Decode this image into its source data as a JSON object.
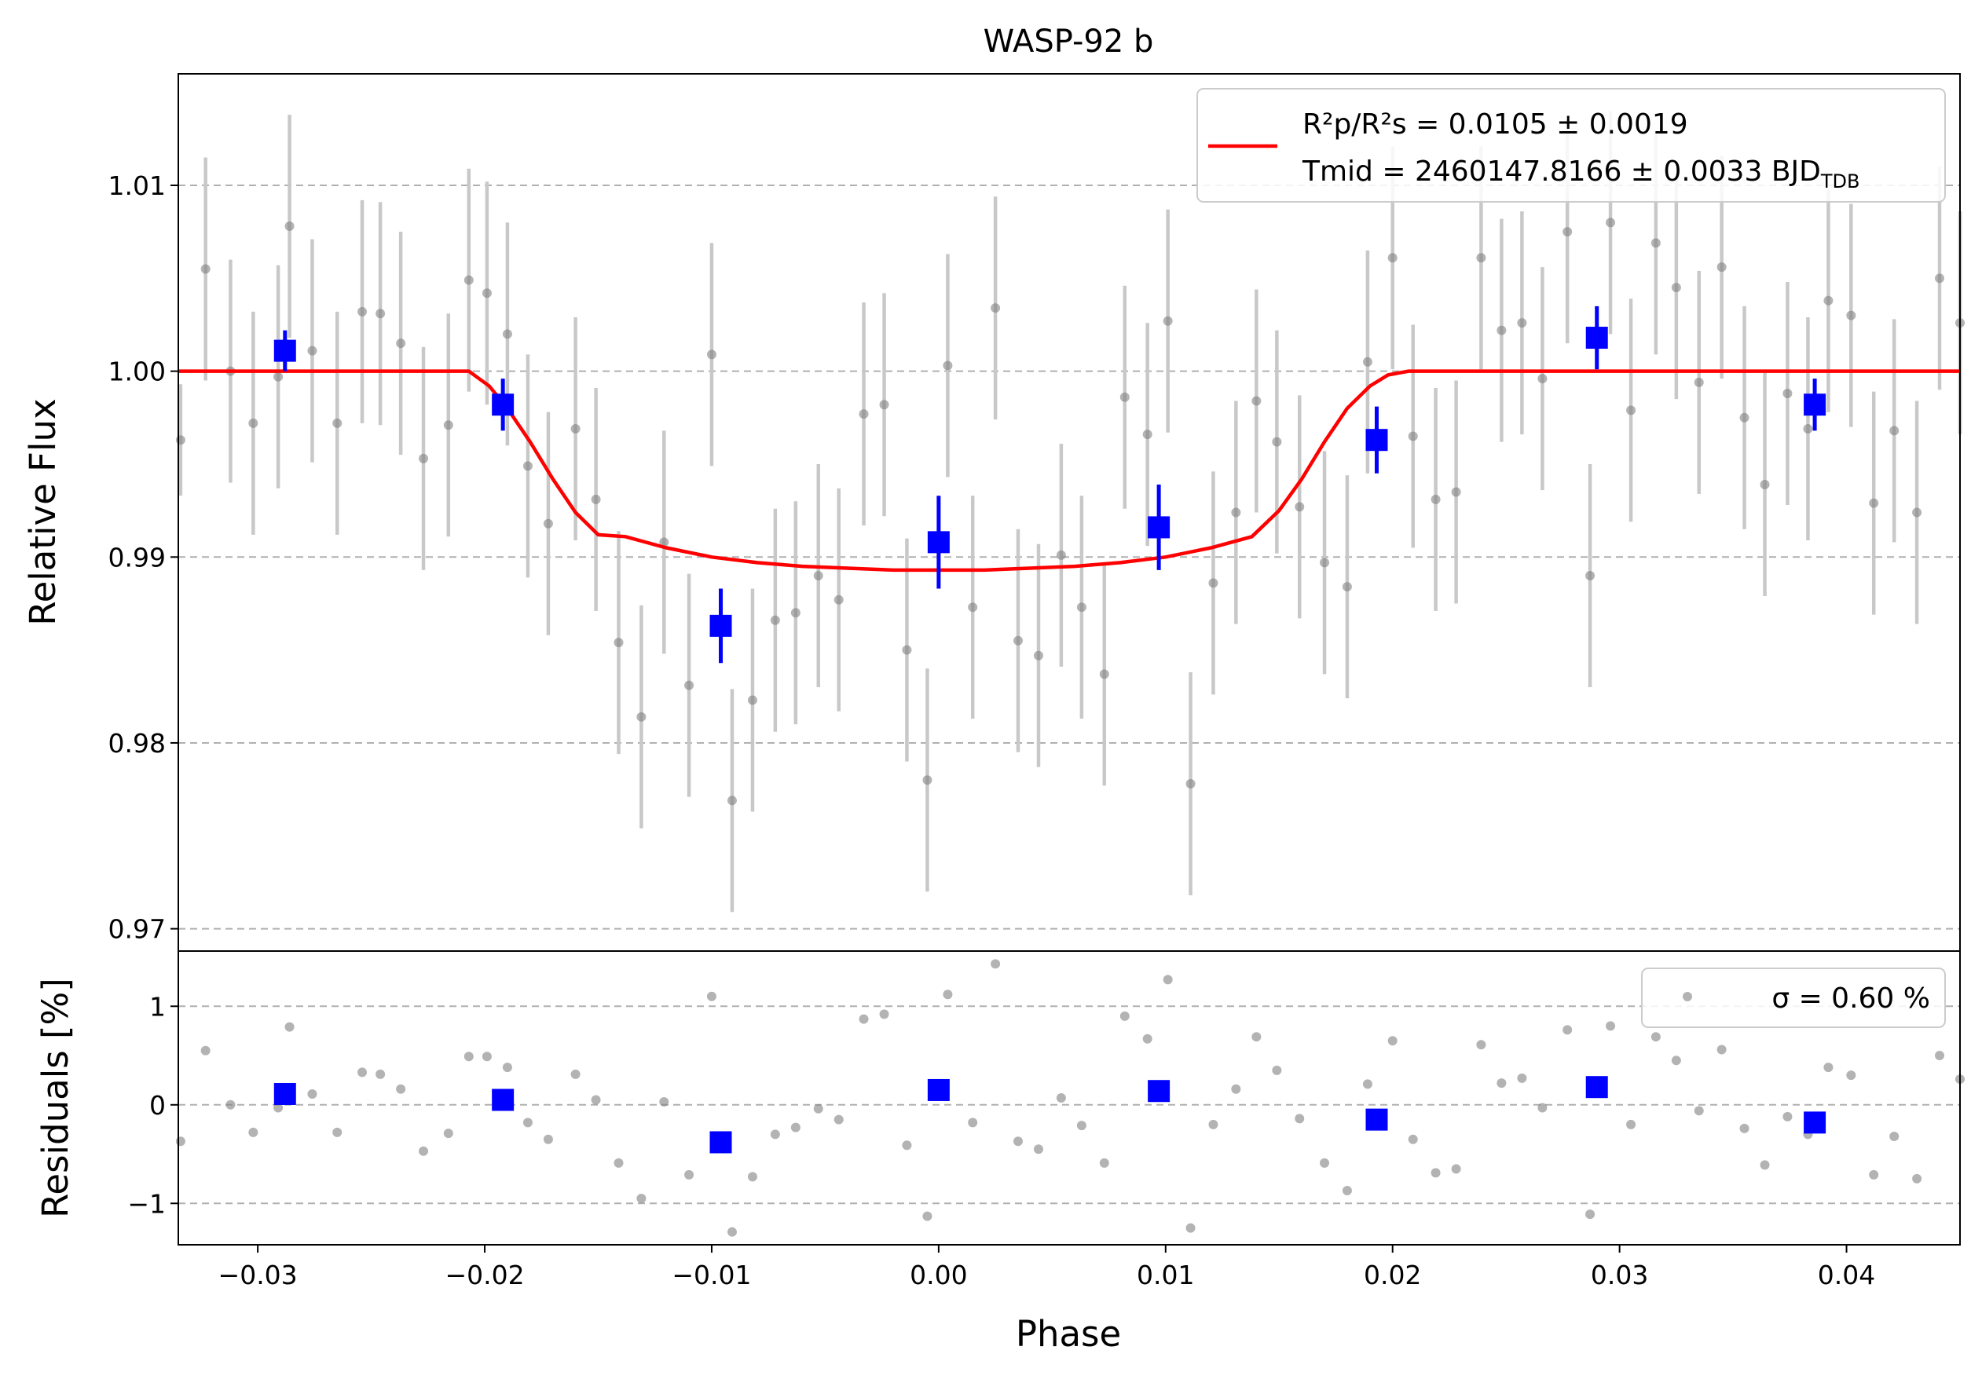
{
  "chart_data": {
    "type": "scatter",
    "title": "WASP-92 b",
    "xlabel": "Phase",
    "xlim": [
      -0.0335,
      0.045
    ],
    "xticks": [
      -0.03,
      -0.02,
      -0.01,
      0.0,
      0.01,
      0.02,
      0.03,
      0.04
    ],
    "xtick_labels": [
      "−0.03",
      "−0.02",
      "−0.01",
      "0.00",
      "0.01",
      "0.02",
      "0.03",
      "0.04"
    ],
    "grid": "horizontal dashed",
    "colors": {
      "raw": "#808080",
      "raw_err": "#c8c8c8",
      "binned": "#0000ff",
      "model": "#ff0000"
    },
    "top": {
      "ylabel": "Relative Flux",
      "ylim": [
        0.9688,
        1.016
      ],
      "yticks": [
        0.97,
        0.98,
        0.99,
        1.0,
        1.01
      ],
      "ytick_labels": [
        "0.97",
        "0.98",
        "0.99",
        "1.00",
        "1.01"
      ],
      "legend_position": "top-right",
      "legend_line1_main": "R²p/R²s = 0.0105 ± 0.0019",
      "legend_line2_main": "Tmid = 2460147.8166 ± 0.0033 BJD",
      "legend_line2_sub": "TDB",
      "raw_points": [
        [
          -0.0334,
          0.9963,
          0.003
        ],
        [
          -0.0323,
          1.0055,
          0.006
        ],
        [
          -0.0312,
          1.0,
          0.006
        ],
        [
          -0.0302,
          0.9972,
          0.006
        ],
        [
          -0.0291,
          0.9997,
          0.006
        ],
        [
          -0.0286,
          1.0078,
          0.006
        ],
        [
          -0.0276,
          1.0011,
          0.006
        ],
        [
          -0.0265,
          0.9972,
          0.006
        ],
        [
          -0.0254,
          1.0032,
          0.006
        ],
        [
          -0.0246,
          1.0031,
          0.006
        ],
        [
          -0.0237,
          1.0015,
          0.006
        ],
        [
          -0.0227,
          0.9953,
          0.006
        ],
        [
          -0.0216,
          0.9971,
          0.006
        ],
        [
          -0.0207,
          1.0049,
          0.006
        ],
        [
          -0.0199,
          1.0042,
          0.006
        ],
        [
          -0.019,
          1.002,
          0.006
        ],
        [
          -0.0181,
          0.9949,
          0.006
        ],
        [
          -0.0172,
          0.9918,
          0.006
        ],
        [
          -0.016,
          0.9969,
          0.006
        ],
        [
          -0.0151,
          0.9931,
          0.006
        ],
        [
          -0.0141,
          0.9854,
          0.006
        ],
        [
          -0.0131,
          0.9814,
          0.006
        ],
        [
          -0.0121,
          0.9908,
          0.006
        ],
        [
          -0.011,
          0.9831,
          0.006
        ],
        [
          -0.01,
          1.0009,
          0.006
        ],
        [
          -0.0091,
          0.9769,
          0.006
        ],
        [
          -0.0082,
          0.9823,
          0.006
        ],
        [
          -0.0072,
          0.9866,
          0.006
        ],
        [
          -0.0063,
          0.987,
          0.006
        ],
        [
          -0.0053,
          0.989,
          0.006
        ],
        [
          -0.0044,
          0.9877,
          0.006
        ],
        [
          -0.0033,
          0.9977,
          0.006
        ],
        [
          -0.0024,
          0.9982,
          0.006
        ],
        [
          -0.0014,
          0.985,
          0.006
        ],
        [
          -0.0005,
          0.978,
          0.006
        ],
        [
          0.0004,
          1.0003,
          0.006
        ],
        [
          0.0015,
          0.9873,
          0.006
        ],
        [
          0.0025,
          1.0034,
          0.006
        ],
        [
          0.0035,
          0.9855,
          0.006
        ],
        [
          0.0044,
          0.9847,
          0.006
        ],
        [
          0.0054,
          0.9901,
          0.006
        ],
        [
          0.0063,
          0.9873,
          0.006
        ],
        [
          0.0073,
          0.9837,
          0.006
        ],
        [
          0.0082,
          0.9986,
          0.006
        ],
        [
          0.0092,
          0.9966,
          0.006
        ],
        [
          0.0101,
          1.0027,
          0.006
        ],
        [
          0.0111,
          0.9778,
          0.006
        ],
        [
          0.0121,
          0.9886,
          0.006
        ],
        [
          0.0131,
          0.9924,
          0.006
        ],
        [
          0.014,
          0.9984,
          0.006
        ],
        [
          0.0149,
          0.9962,
          0.006
        ],
        [
          0.0159,
          0.9927,
          0.006
        ],
        [
          0.017,
          0.9897,
          0.006
        ],
        [
          0.018,
          0.9884,
          0.006
        ],
        [
          0.0189,
          1.0005,
          0.006
        ],
        [
          0.02,
          1.0061,
          0.006
        ],
        [
          0.0209,
          0.9965,
          0.006
        ],
        [
          0.0219,
          0.9931,
          0.006
        ],
        [
          0.0228,
          0.9935,
          0.006
        ],
        [
          0.0239,
          1.0061,
          0.006
        ],
        [
          0.0248,
          1.0022,
          0.006
        ],
        [
          0.0257,
          1.0026,
          0.006
        ],
        [
          0.0266,
          0.9996,
          0.006
        ],
        [
          0.0277,
          1.0075,
          0.006
        ],
        [
          0.0287,
          0.989,
          0.006
        ],
        [
          0.0296,
          1.008,
          0.006
        ],
        [
          0.0305,
          0.9979,
          0.006
        ],
        [
          0.0316,
          1.0069,
          0.006
        ],
        [
          0.0325,
          1.0045,
          0.006
        ],
        [
          0.0335,
          0.9994,
          0.006
        ],
        [
          0.0345,
          1.0056,
          0.006
        ],
        [
          0.0355,
          0.9975,
          0.006
        ],
        [
          0.0364,
          0.9939,
          0.006
        ],
        [
          0.0374,
          0.9988,
          0.006
        ],
        [
          0.0383,
          0.9969,
          0.006
        ],
        [
          0.0392,
          1.0038,
          0.006
        ],
        [
          0.0402,
          1.003,
          0.006
        ],
        [
          0.0412,
          0.9929,
          0.006
        ],
        [
          0.0421,
          0.9968,
          0.006
        ],
        [
          0.0431,
          0.9924,
          0.006
        ],
        [
          0.0441,
          1.005,
          0.006
        ],
        [
          0.045,
          1.0026,
          0.006
        ]
      ],
      "binned_points": [
        [
          -0.0288,
          1.0011,
          0.0011
        ],
        [
          -0.0192,
          0.9982,
          0.0014
        ],
        [
          -0.0096,
          0.9863,
          0.002
        ],
        [
          0.0,
          0.9908,
          0.0025
        ],
        [
          0.0097,
          0.9916,
          0.0023
        ],
        [
          0.0193,
          0.9963,
          0.0018
        ],
        [
          0.029,
          1.0018,
          0.0017
        ],
        [
          0.0386,
          0.9982,
          0.0014
        ]
      ],
      "model": [
        [
          -0.0335,
          1.0
        ],
        [
          -0.0207,
          1.0
        ],
        [
          -0.0198,
          0.9992
        ],
        [
          -0.019,
          0.998
        ],
        [
          -0.018,
          0.9962
        ],
        [
          -0.017,
          0.9942
        ],
        [
          -0.016,
          0.9924
        ],
        [
          -0.015,
          0.9912
        ],
        [
          -0.0138,
          0.9911
        ],
        [
          -0.012,
          0.9905
        ],
        [
          -0.01,
          0.99
        ],
        [
          -0.008,
          0.9897
        ],
        [
          -0.006,
          0.9895
        ],
        [
          -0.004,
          0.9894
        ],
        [
          -0.002,
          0.9893
        ],
        [
          0.0,
          0.9893
        ],
        [
          0.002,
          0.9893
        ],
        [
          0.004,
          0.9894
        ],
        [
          0.006,
          0.9895
        ],
        [
          0.008,
          0.9897
        ],
        [
          0.01,
          0.99
        ],
        [
          0.012,
          0.9905
        ],
        [
          0.0138,
          0.9911
        ],
        [
          0.015,
          0.9925
        ],
        [
          0.016,
          0.9942
        ],
        [
          0.017,
          0.9962
        ],
        [
          0.018,
          0.998
        ],
        [
          0.019,
          0.9992
        ],
        [
          0.0198,
          0.9998
        ],
        [
          0.0207,
          1.0
        ],
        [
          0.045,
          1.0
        ]
      ]
    },
    "bottom": {
      "ylabel": "Residuals [%]",
      "ylim": [
        -1.42,
        1.56
      ],
      "yticks": [
        -1,
        0,
        1
      ],
      "ytick_labels": [
        "−1",
        "0",
        "1"
      ],
      "legend_position": "top-right",
      "legend_main": "σ = 0.60 %",
      "raw_points": [
        [
          -0.0334,
          -0.37
        ],
        [
          -0.0323,
          0.55
        ],
        [
          -0.0312,
          0.0
        ],
        [
          -0.0302,
          -0.28
        ],
        [
          -0.0291,
          -0.03
        ],
        [
          -0.0286,
          0.79
        ],
        [
          -0.0276,
          0.11
        ],
        [
          -0.0265,
          -0.28
        ],
        [
          -0.0254,
          0.33
        ],
        [
          -0.0246,
          0.31
        ],
        [
          -0.0237,
          0.16
        ],
        [
          -0.0227,
          -0.47
        ],
        [
          -0.0216,
          -0.29
        ],
        [
          -0.0207,
          0.49
        ],
        [
          -0.0199,
          0.49
        ],
        [
          -0.019,
          0.38
        ],
        [
          -0.0181,
          -0.18
        ],
        [
          -0.0172,
          -0.35
        ],
        [
          -0.016,
          0.31
        ],
        [
          -0.0151,
          0.05
        ],
        [
          -0.0141,
          -0.59
        ],
        [
          -0.0131,
          -0.95
        ],
        [
          -0.0121,
          0.03
        ],
        [
          -0.011,
          -0.71
        ],
        [
          -0.01,
          1.1
        ],
        [
          -0.0091,
          -1.29
        ],
        [
          -0.0082,
          -0.73
        ],
        [
          -0.0072,
          -0.3
        ],
        [
          -0.0063,
          -0.23
        ],
        [
          -0.0053,
          -0.04
        ],
        [
          -0.0044,
          -0.15
        ],
        [
          -0.0033,
          0.87
        ],
        [
          -0.0024,
          0.92
        ],
        [
          -0.0014,
          -0.41
        ],
        [
          -0.0005,
          -1.13
        ],
        [
          0.0004,
          1.12
        ],
        [
          0.0015,
          -0.18
        ],
        [
          0.0025,
          1.43
        ],
        [
          0.0035,
          -0.37
        ],
        [
          0.0044,
          -0.45
        ],
        [
          0.0054,
          0.07
        ],
        [
          0.0063,
          -0.21
        ],
        [
          0.0073,
          -0.59
        ],
        [
          0.0082,
          0.9
        ],
        [
          0.0092,
          0.67
        ],
        [
          0.0101,
          1.27
        ],
        [
          0.0111,
          -1.25
        ],
        [
          0.0121,
          -0.2
        ],
        [
          0.0131,
          0.16
        ],
        [
          0.014,
          0.69
        ],
        [
          0.0149,
          0.35
        ],
        [
          0.0159,
          -0.14
        ],
        [
          0.017,
          -0.59
        ],
        [
          0.018,
          -0.87
        ],
        [
          0.0189,
          0.21
        ],
        [
          0.02,
          0.65
        ],
        [
          0.0209,
          -0.35
        ],
        [
          0.0219,
          -0.69
        ],
        [
          0.0228,
          -0.65
        ],
        [
          0.0239,
          0.61
        ],
        [
          0.0248,
          0.22
        ],
        [
          0.0257,
          0.27
        ],
        [
          0.0266,
          -0.03
        ],
        [
          0.0277,
          0.76
        ],
        [
          0.0287,
          -1.11
        ],
        [
          0.0296,
          0.8
        ],
        [
          0.0305,
          -0.2
        ],
        [
          0.0316,
          0.69
        ],
        [
          0.0325,
          0.45
        ],
        [
          0.0335,
          -0.06
        ],
        [
          0.0345,
          0.56
        ],
        [
          0.0355,
          -0.24
        ],
        [
          0.0364,
          -0.61
        ],
        [
          0.0374,
          -0.12
        ],
        [
          0.0383,
          -0.3
        ],
        [
          0.0392,
          0.38
        ],
        [
          0.0402,
          0.3
        ],
        [
          0.0412,
          -0.71
        ],
        [
          0.0421,
          -0.32
        ],
        [
          0.0431,
          -0.75
        ],
        [
          0.0441,
          0.5
        ],
        [
          0.045,
          0.26
        ]
      ],
      "binned_points": [
        [
          -0.0288,
          0.11
        ],
        [
          -0.0192,
          0.05
        ],
        [
          -0.0096,
          -0.38
        ],
        [
          0.0,
          0.15
        ],
        [
          0.0097,
          0.14
        ],
        [
          0.0193,
          -0.15
        ],
        [
          0.029,
          0.18
        ],
        [
          0.0386,
          -0.18
        ]
      ]
    }
  }
}
